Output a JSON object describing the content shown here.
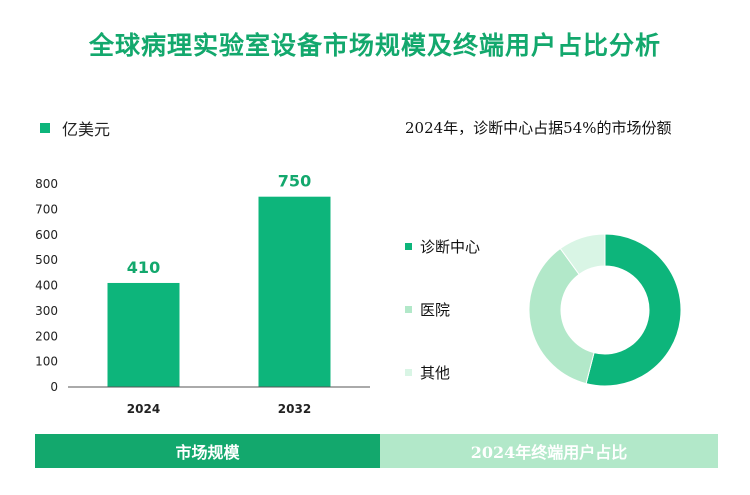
{
  "title": "全球病理实验室设备市场规模及终端用户占比分析",
  "bar_legend": "亿美元",
  "donut_title": "2024年，诊断中心占据54%的市场份额",
  "footer": {
    "left": "市场规模",
    "right": "2024年终端用户占比"
  },
  "colors": {
    "accent": "#0db57b",
    "label": "#13a86d",
    "light": "#b2e8c9",
    "lighter": "#d9f5e5"
  },
  "chart_data": [
    {
      "type": "bar",
      "categories": [
        "2024",
        "2032"
      ],
      "values": [
        410,
        750
      ],
      "ylim": [
        0,
        800
      ],
      "yticks": [
        0,
        100,
        200,
        300,
        400,
        500,
        600,
        700,
        800
      ],
      "grid": false
    },
    {
      "type": "pie",
      "labels": [
        "诊断中心",
        "医院",
        "其他"
      ],
      "values": [
        54,
        36,
        10
      ],
      "colors": [
        "#0db57b",
        "#b2e8c9",
        "#d9f5e5"
      ]
    }
  ]
}
